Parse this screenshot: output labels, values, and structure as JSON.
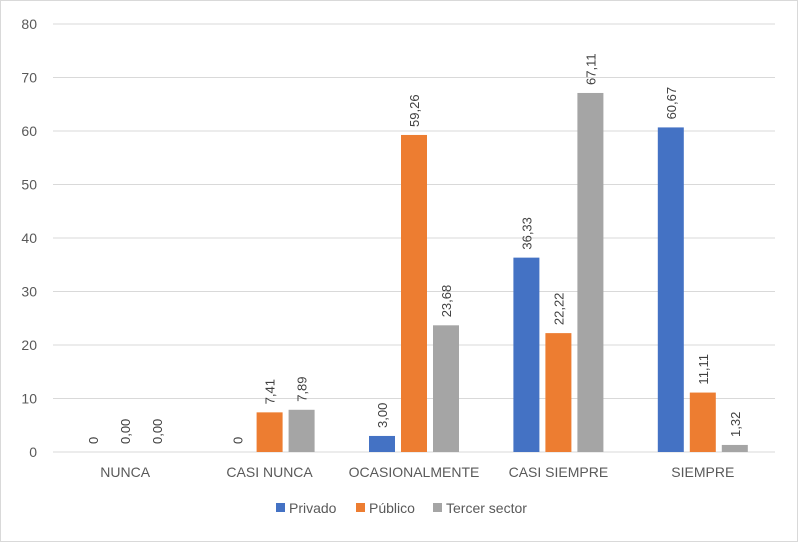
{
  "chart_data": {
    "type": "bar",
    "categories": [
      "NUNCA",
      "CASI NUNCA",
      "OCASIONALMENTE",
      "CASI SIEMPRE",
      "SIEMPRE"
    ],
    "series": [
      {
        "name": "Privado",
        "color": "#4472c4",
        "values": [
          0,
          0,
          3.0,
          36.33,
          60.67
        ],
        "labels": [
          "0",
          "0",
          "3,00",
          "36,33",
          "60,67"
        ]
      },
      {
        "name": "Público",
        "color": "#ed7d31",
        "values": [
          0,
          7.41,
          59.26,
          22.22,
          11.11
        ],
        "labels": [
          "0,00",
          "7,41",
          "59,26",
          "22,22",
          "11,11"
        ]
      },
      {
        "name": "Tercer sector",
        "color": "#a5a5a5",
        "values": [
          0,
          7.89,
          23.68,
          67.11,
          1.32
        ],
        "labels": [
          "0,00",
          "7,89",
          "23,68",
          "67,11",
          "1,32"
        ]
      }
    ],
    "yticks": [
      "0",
      "10",
      "20",
      "30",
      "40",
      "50",
      "60",
      "70",
      "80"
    ],
    "ylim": [
      0,
      80
    ],
    "grid": true,
    "legend_position": "bottom"
  }
}
